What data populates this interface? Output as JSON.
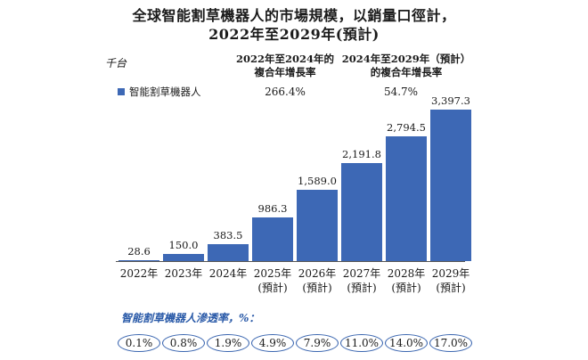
{
  "title_line1": "全球智能割草機器人的市場規模，以銷量口徑計，",
  "title_line2": "2022年至2029年(預計)",
  "unit_label": "千台",
  "cagr": [
    {
      "heading_line1": "2022年至2024年的",
      "heading_line2": "複合年增長率",
      "value": "266.4%"
    },
    {
      "heading_line1": "2024年至2029年（預計）",
      "heading_line2": "的複合年增長率",
      "value": "54.7%"
    }
  ],
  "legend_label": "智能割草機器人",
  "bar_color": "#3d68b5",
  "penetration": {
    "title": "智能割草機器人滲透率，%：",
    "values": [
      "0.1%",
      "0.8%",
      "1.9%",
      "4.9%",
      "7.9%",
      "11.0%",
      "14.0%",
      "17.0%"
    ]
  },
  "chart_data": {
    "type": "bar",
    "title": "全球智能割草機器人的市場規模，以銷量口徑計，2022年至2029年(預計)",
    "ylabel": "千台",
    "categories": [
      {
        "year": "2022年",
        "note": ""
      },
      {
        "year": "2023年",
        "note": ""
      },
      {
        "year": "2024年",
        "note": ""
      },
      {
        "year": "2025年",
        "note": "(預計)"
      },
      {
        "year": "2026年",
        "note": "(預計)"
      },
      {
        "year": "2027年",
        "note": "(預計)"
      },
      {
        "year": "2028年",
        "note": "(預計)"
      },
      {
        "year": "2029年",
        "note": "(預計)"
      }
    ],
    "series": [
      {
        "name": "智能割草機器人",
        "values": [
          28.6,
          150.0,
          383.5,
          986.3,
          1589.0,
          2191.8,
          2794.5,
          3397.3
        ],
        "labels": [
          "28.6",
          "150.0",
          "383.5",
          "986.3",
          "1,589.0",
          "2,191.8",
          "2,794.5",
          "3,397.3"
        ]
      }
    ],
    "ylim": [
      0,
      3397.3
    ],
    "grid": false,
    "legend_position": "top-left"
  }
}
